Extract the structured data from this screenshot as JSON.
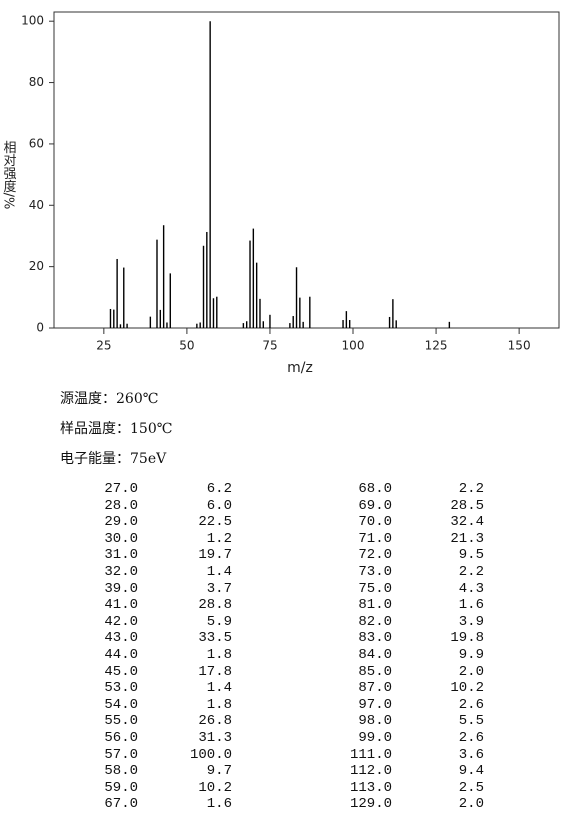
{
  "chart_data": {
    "type": "bar",
    "ylabel": "相对强度/%",
    "xlabel": "m/z",
    "x": [
      27,
      28,
      29,
      30,
      31,
      32,
      39,
      41,
      42,
      43,
      44,
      45,
      53,
      54,
      55,
      56,
      57,
      58,
      59,
      67,
      68,
      69,
      70,
      71,
      72,
      73,
      75,
      81,
      82,
      83,
      84,
      85,
      87,
      97,
      98,
      99,
      111,
      112,
      113,
      129
    ],
    "values": [
      6.2,
      6.0,
      22.5,
      1.2,
      19.7,
      1.4,
      3.7,
      28.8,
      5.9,
      33.5,
      1.8,
      17.8,
      1.4,
      1.8,
      26.8,
      31.3,
      100.0,
      9.7,
      10.2,
      1.6,
      2.2,
      28.5,
      32.4,
      21.3,
      9.5,
      2.2,
      4.3,
      1.6,
      3.9,
      19.8,
      9.9,
      2.0,
      10.2,
      2.6,
      5.5,
      2.6,
      3.6,
      9.4,
      2.5,
      2.0
    ],
    "color": "#000000",
    "xlim": [
      10,
      162
    ],
    "xticks": [
      25,
      50,
      75,
      100,
      125,
      150
    ],
    "ylim": [
      0,
      103
    ],
    "yticks": [
      0,
      20,
      40,
      60,
      80,
      100
    ]
  },
  "conditions": [
    "源温度：260℃",
    "样品温度：150℃",
    "电子能量：75eV"
  ],
  "table": {
    "rows": [
      [
        "27.0",
        "6.2",
        "68.0",
        "2.2"
      ],
      [
        "28.0",
        "6.0",
        "69.0",
        "28.5"
      ],
      [
        "29.0",
        "22.5",
        "70.0",
        "32.4"
      ],
      [
        "30.0",
        "1.2",
        "71.0",
        "21.3"
      ],
      [
        "31.0",
        "19.7",
        "72.0",
        "9.5"
      ],
      [
        "32.0",
        "1.4",
        "73.0",
        "2.2"
      ],
      [
        "39.0",
        "3.7",
        "75.0",
        "4.3"
      ],
      [
        "41.0",
        "28.8",
        "81.0",
        "1.6"
      ],
      [
        "42.0",
        "5.9",
        "82.0",
        "3.9"
      ],
      [
        "43.0",
        "33.5",
        "83.0",
        "19.8"
      ],
      [
        "44.0",
        "1.8",
        "84.0",
        "9.9"
      ],
      [
        "45.0",
        "17.8",
        "85.0",
        "2.0"
      ],
      [
        "53.0",
        "1.4",
        "87.0",
        "10.2"
      ],
      [
        "54.0",
        "1.8",
        "97.0",
        "2.6"
      ],
      [
        "55.0",
        "26.8",
        "98.0",
        "5.5"
      ],
      [
        "56.0",
        "31.3",
        "99.0",
        "2.6"
      ],
      [
        "57.0",
        "100.0",
        "111.0",
        "3.6"
      ],
      [
        "58.0",
        "9.7",
        "112.0",
        "9.4"
      ],
      [
        "59.0",
        "10.2",
        "113.0",
        "2.5"
      ],
      [
        "67.0",
        "1.6",
        "129.0",
        "2.0"
      ]
    ]
  }
}
